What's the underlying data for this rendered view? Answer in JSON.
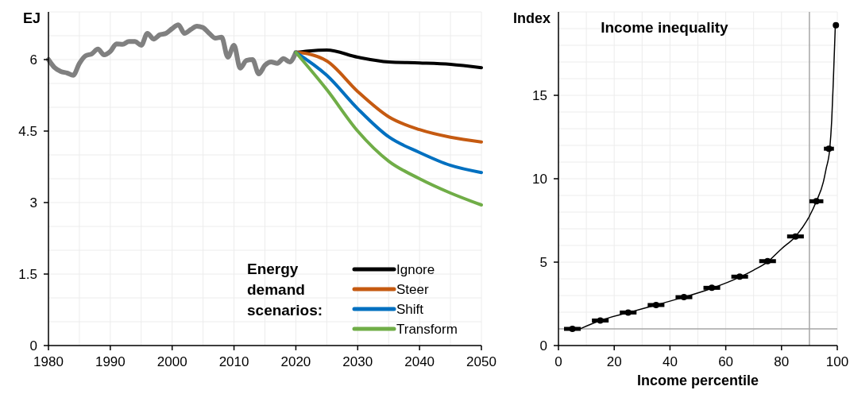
{
  "chart_data": [
    {
      "type": "line",
      "ylabel": "EJ",
      "legend_title": "Energy demand scenarios:",
      "legend": "bottom right",
      "grid": true,
      "xlim": [
        1980,
        2050
      ],
      "ylim": [
        0,
        7
      ],
      "xticks": [
        1980,
        {
          "value": 1985,
          "label": null
        },
        1990,
        {
          "value": 1995,
          "label": null
        },
        2000,
        {
          "value": 2005,
          "label": null
        },
        2010,
        {
          "value": 2015,
          "label": null
        },
        2020,
        {
          "value": 2025,
          "label": null
        },
        2030,
        {
          "value": 2035,
          "label": null
        },
        2040,
        {
          "value": 2045,
          "label": null
        },
        2050
      ],
      "yticks": [
        0,
        {
          "value": 0.5,
          "label": null
        },
        {
          "value": 1,
          "label": null
        },
        1.5,
        {
          "value": 2,
          "label": null
        },
        {
          "value": 2.5,
          "label": null
        },
        3,
        {
          "value": 3.5,
          "label": null
        },
        {
          "value": 4,
          "label": null
        },
        4.5,
        {
          "value": 5,
          "label": null
        },
        {
          "value": 5.5,
          "label": null
        },
        6,
        {
          "value": 6.5,
          "label": null
        },
        {
          "value": 7,
          "label": null
        }
      ],
      "series": [
        {
          "color": "#808080",
          "x": [
            1980,
            1981,
            1982,
            1983,
            1984,
            1985,
            1986,
            1987,
            1988,
            1989,
            1990,
            1991,
            1992,
            1993,
            1994,
            1995,
            1996,
            1997,
            1998,
            1999,
            2000,
            2001,
            2002,
            2003,
            2004,
            2005,
            2006,
            2007,
            2008,
            2009,
            2010,
            2011,
            2012,
            2013,
            2014,
            2015,
            2016,
            2017,
            2018,
            2019,
            2020
          ],
          "values": [
            6.0,
            5.83,
            5.75,
            5.72,
            5.67,
            5.92,
            6.08,
            6.12,
            6.22,
            6.1,
            6.17,
            6.33,
            6.32,
            6.38,
            6.38,
            6.3,
            6.55,
            6.43,
            6.52,
            6.55,
            6.65,
            6.73,
            6.55,
            6.63,
            6.7,
            6.67,
            6.55,
            6.45,
            6.47,
            6.05,
            6.3,
            5.82,
            5.98,
            6.0,
            5.7,
            5.88,
            5.95,
            5.92,
            6.02,
            5.95,
            6.15
          ]
        },
        {
          "name": "Ignore",
          "color": "#000000",
          "x": [
            2020,
            2022,
            2025,
            2030,
            2035,
            2040,
            2045,
            2050
          ],
          "values": [
            6.15,
            6.18,
            6.2,
            6.05,
            5.95,
            5.93,
            5.9,
            5.83
          ]
        },
        {
          "name": "Steer",
          "color": "#c55a11",
          "x": [
            2020,
            2022,
            2025,
            2030,
            2035,
            2040,
            2045,
            2050
          ],
          "values": [
            6.15,
            6.12,
            5.97,
            5.33,
            4.8,
            4.53,
            4.37,
            4.27
          ]
        },
        {
          "name": "Shift",
          "color": "#0070c0",
          "x": [
            2020,
            2025,
            2030,
            2035,
            2040,
            2045,
            2050
          ],
          "values": [
            6.15,
            5.67,
            4.97,
            4.38,
            4.05,
            3.78,
            3.63
          ]
        },
        {
          "name": "Transform",
          "color": "#70ad47",
          "x": [
            2020,
            2025,
            2030,
            2035,
            2040,
            2045,
            2050
          ],
          "values": [
            6.15,
            5.37,
            4.5,
            3.87,
            3.5,
            3.2,
            2.95
          ]
        }
      ]
    },
    {
      "type": "scatter",
      "title": "Income inequality",
      "xlabel": "Income percentile",
      "ylabel": "Index",
      "grid": true,
      "xlim": [
        0,
        100
      ],
      "ylim": [
        0,
        20
      ],
      "xticks": [
        0,
        {
          "value": 10,
          "label": null
        },
        20,
        {
          "value": 30,
          "label": null
        },
        40,
        {
          "value": 50,
          "label": null
        },
        60,
        {
          "value": 70,
          "label": null
        },
        80,
        100
      ],
      "yticks": [
        0,
        {
          "value": 2,
          "label": null
        },
        {
          "value": 3,
          "label": null
        },
        {
          "value": 4,
          "label": null
        },
        5,
        {
          "value": 6,
          "label": null
        },
        {
          "value": 7,
          "label": null
        },
        {
          "value": 8,
          "label": null
        },
        {
          "value": 9,
          "label": null
        },
        10,
        {
          "value": 11,
          "label": null
        },
        {
          "value": 12,
          "label": null
        },
        {
          "value": 13,
          "label": null
        },
        {
          "value": 14,
          "label": null
        },
        15,
        {
          "value": 16,
          "label": null
        },
        {
          "value": 17,
          "label": null
        },
        {
          "value": 18,
          "label": null
        },
        {
          "value": 19,
          "label": null
        },
        {
          "value": 20,
          "label": null
        }
      ],
      "ref_lines": [
        {
          "axis": "x",
          "value": 90,
          "color": "#a6a6a6"
        },
        {
          "axis": "y",
          "value": 1,
          "color": "#a6a6a6"
        }
      ],
      "series": [
        {
          "type": "line",
          "color": "#000000",
          "x": [
            8,
            15,
            25,
            35,
            45,
            55,
            65,
            70,
            75,
            80,
            85,
            90,
            92.5,
            95,
            96,
            97.3,
            98,
            98.6,
            99.3
          ],
          "values": [
            1.02,
            1.5,
            1.97,
            2.43,
            2.9,
            3.43,
            4.1,
            4.52,
            5.02,
            5.8,
            6.54,
            7.75,
            8.65,
            9.8,
            10.6,
            11.8,
            13.5,
            15.95,
            19.2
          ]
        },
        {
          "type": "scatter",
          "color": "#000000",
          "x": [
            5,
            15,
            25,
            35,
            45,
            55,
            65,
            75,
            85,
            92.5,
            97,
            99.5
          ],
          "values": [
            1.0,
            1.5,
            1.98,
            2.43,
            2.9,
            3.46,
            4.13,
            5.06,
            6.54,
            8.65,
            11.8,
            19.2
          ],
          "xerrors": [
            3,
            3,
            3,
            3,
            3,
            3,
            3,
            3,
            3,
            2.5,
            1.8,
            0.8
          ]
        }
      ]
    }
  ]
}
